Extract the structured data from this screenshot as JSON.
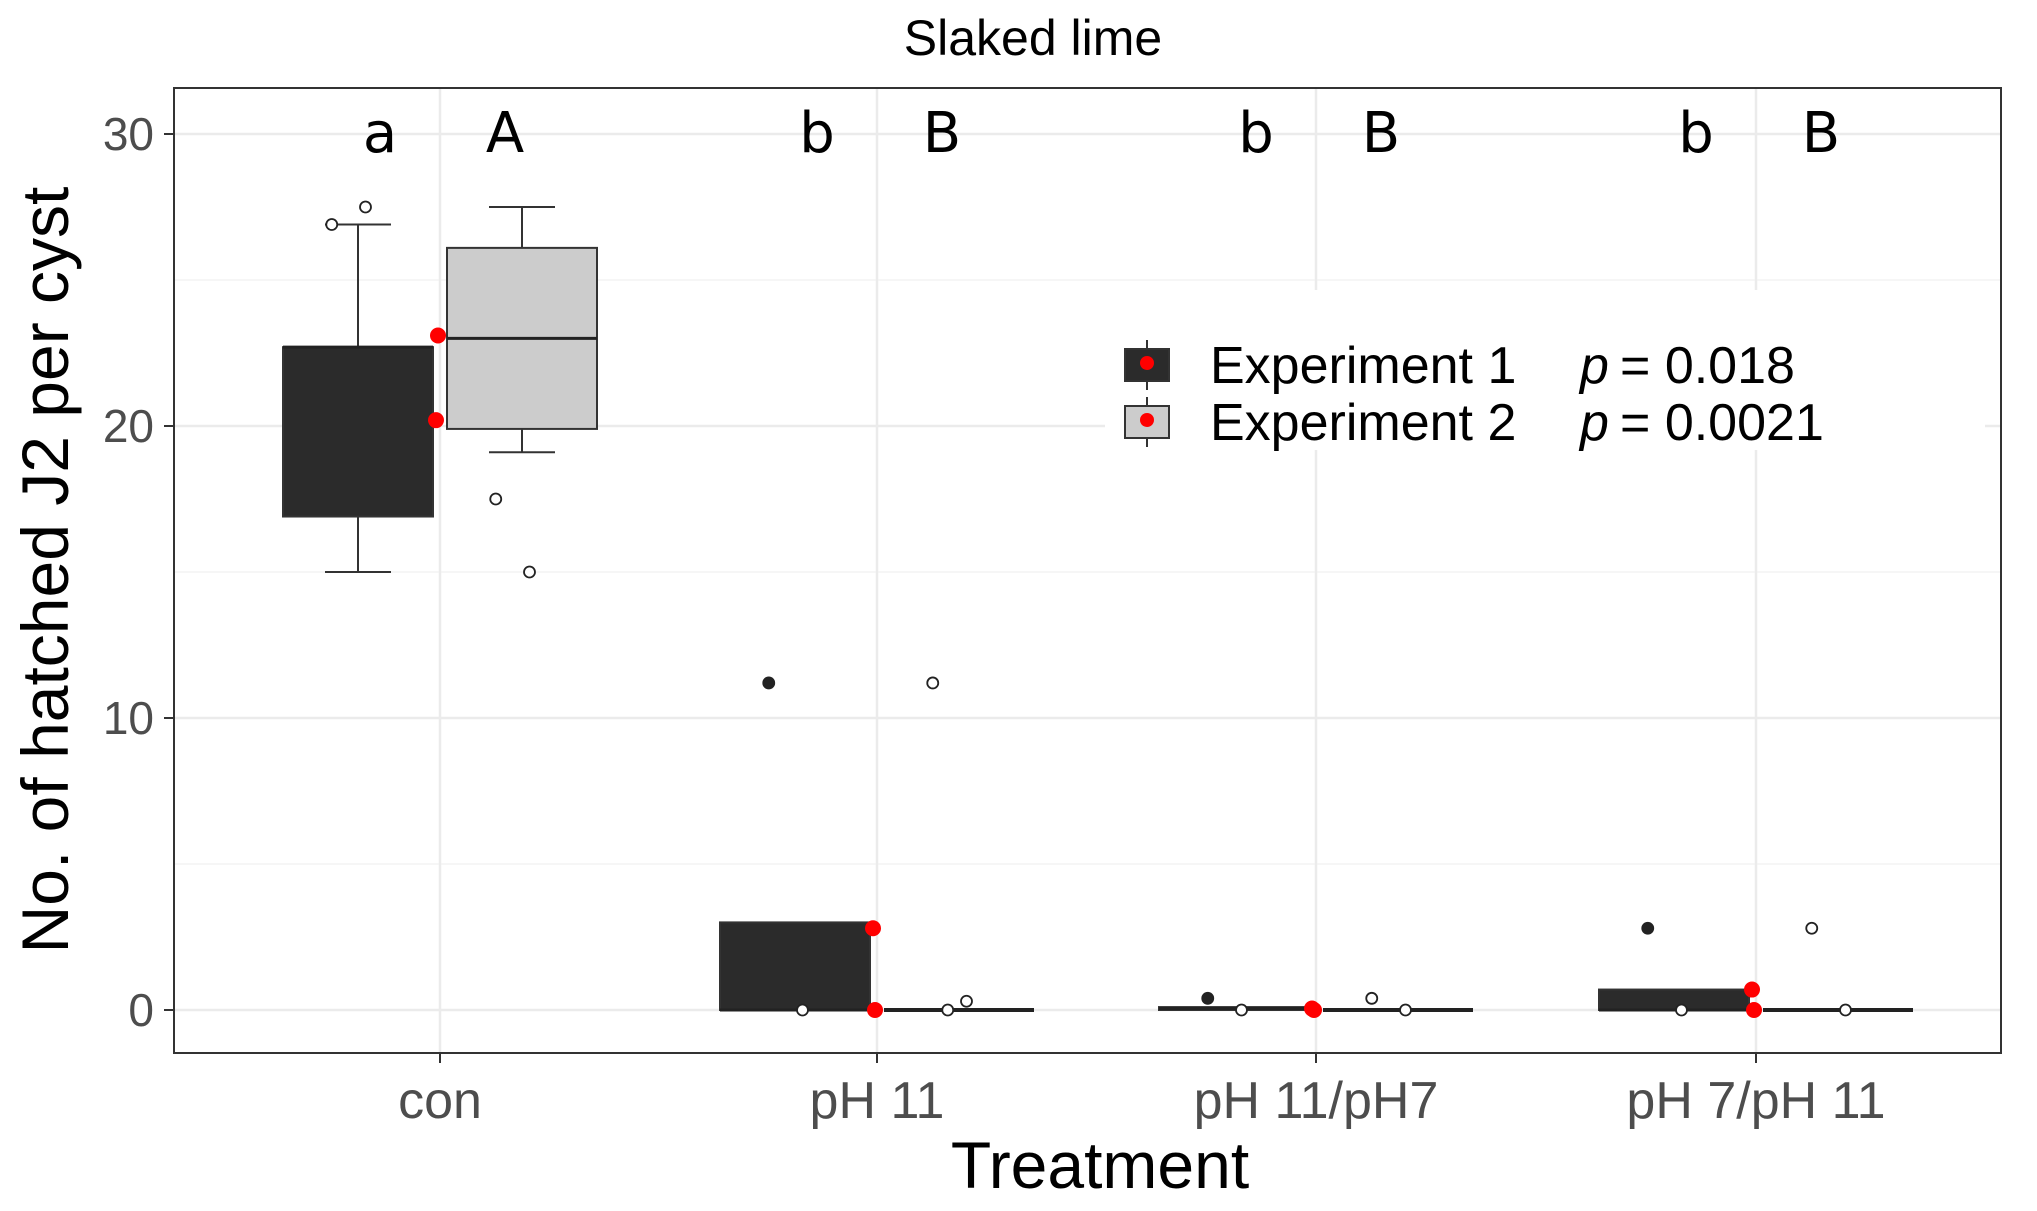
{
  "chart_data": {
    "type": "boxplot",
    "title": "Slaked lime",
    "xlabel": "Treatment",
    "ylabel": "No. of hatched J2 per cyst",
    "ylim": [
      -1.5,
      31.5
    ],
    "yticks": [
      0,
      10,
      20,
      30
    ],
    "grid": true,
    "categories": [
      "con",
      "pH 11",
      "pH 11/pH7",
      "pH 7/pH 11"
    ],
    "significance_letters": {
      "Experiment 1": [
        "a",
        "b",
        "b",
        "b"
      ],
      "Experiment 2": [
        "A",
        "B",
        "B",
        "B"
      ]
    },
    "legend": {
      "position": "top-right",
      "entries": [
        {
          "name": "Experiment 1",
          "p_label": "p",
          "p_value": "= 0.018"
        },
        {
          "name": "Experiment 2",
          "p_label": "p",
          "p_value": "= 0.0021"
        }
      ]
    },
    "series": [
      {
        "name": "Experiment 1",
        "fill": "#2b2b2b",
        "boxes": [
          {
            "category": "con",
            "whisker_low": 15,
            "q1": 16.9,
            "median": 22.7,
            "q3": 22.7,
            "whisker_high": 26.9,
            "mean": 20.2
          },
          {
            "category": "pH 11",
            "whisker_low": 0,
            "q1": 0,
            "median": 0,
            "q3": 3.0,
            "whisker_high": 3.0,
            "mean": 2.8
          },
          {
            "category": "pH 11/pH7",
            "whisker_low": 0,
            "q1": 0,
            "median": 0.05,
            "q3": 0.1,
            "whisker_high": 0.1,
            "mean": 0.05
          },
          {
            "category": "pH 7/pH 11",
            "whisker_low": 0,
            "q1": 0,
            "median": 0,
            "q3": 0.7,
            "whisker_high": 0.7,
            "mean": 0.7
          }
        ],
        "points": [
          {
            "category": "con",
            "y": 26.9,
            "style": "open"
          },
          {
            "category": "con",
            "y": 27.5,
            "style": "open"
          },
          {
            "category": "pH 11",
            "y": 11.2,
            "style": "filled"
          },
          {
            "category": "pH 11",
            "y": 0,
            "style": "open"
          },
          {
            "category": "pH 11/pH7",
            "y": 0.4,
            "style": "filled"
          },
          {
            "category": "pH 11/pH7",
            "y": 0,
            "style": "open"
          },
          {
            "category": "pH 7/pH 11",
            "y": 2.8,
            "style": "filled"
          },
          {
            "category": "pH 7/pH 11",
            "y": 0,
            "style": "open"
          }
        ]
      },
      {
        "name": "Experiment 2",
        "fill": "#cccccc",
        "boxes": [
          {
            "category": "con",
            "whisker_low": 19.1,
            "q1": 19.9,
            "median": 23.0,
            "q3": 26.1,
            "whisker_high": 27.5,
            "mean": 23.1
          },
          {
            "category": "pH 11",
            "whisker_low": 0,
            "q1": 0,
            "median": 0,
            "q3": 0,
            "whisker_high": 0,
            "mean": 0
          },
          {
            "category": "pH 11/pH7",
            "whisker_low": 0,
            "q1": 0,
            "median": 0,
            "q3": 0,
            "whisker_high": 0,
            "mean": 0
          },
          {
            "category": "pH 7/pH 11",
            "whisker_low": 0,
            "q1": 0,
            "median": 0,
            "q3": 0,
            "whisker_high": 0,
            "mean": 0
          }
        ],
        "points": [
          {
            "category": "con",
            "y": 17.5,
            "style": "open"
          },
          {
            "category": "con",
            "y": 15.0,
            "style": "open"
          },
          {
            "category": "pH 11",
            "y": 11.2,
            "style": "open"
          },
          {
            "category": "pH 11",
            "y": 0.3,
            "style": "open"
          },
          {
            "category": "pH 11",
            "y": 0,
            "style": "open"
          },
          {
            "category": "pH 11/pH7",
            "y": 0.4,
            "style": "open"
          },
          {
            "category": "pH 11/pH7",
            "y": 0,
            "style": "open"
          },
          {
            "category": "pH 7/pH 11",
            "y": 2.8,
            "style": "open"
          },
          {
            "category": "pH 7/pH 11",
            "y": 0,
            "style": "open"
          }
        ]
      }
    ],
    "colors": {
      "mean_marker": "#ff0000",
      "panel_border": "#333333",
      "grid_major": "#ebebeb",
      "grid_minor": "#f4f4f4"
    }
  }
}
